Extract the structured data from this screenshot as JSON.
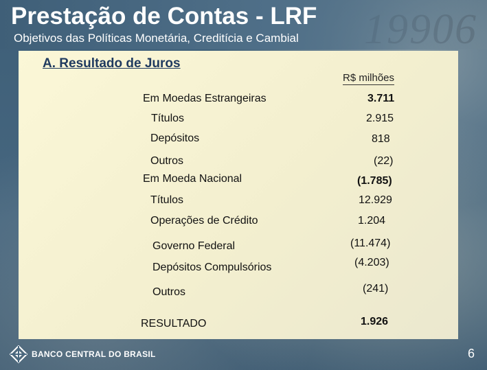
{
  "header": {
    "title": "Prestação de Contas - LRF",
    "subtitle": "Objetivos das Políticas Monetária, Creditícia e Cambial"
  },
  "section": {
    "heading": "A. Resultado de Juros",
    "unit": "R$ milhões"
  },
  "rows": [
    {
      "label": "Em Moedas Estrangeiras",
      "value": "3.711"
    },
    {
      "label": "Títulos",
      "value": "2.915"
    },
    {
      "label": "Depósitos",
      "value": "818"
    },
    {
      "label": "Outros",
      "value": "(22)"
    },
    {
      "label": "Em Moeda Nacional",
      "value": "(1.785)"
    },
    {
      "label": "Títulos",
      "value": "12.929"
    },
    {
      "label": "Operações de Crédito",
      "value": "1.204"
    },
    {
      "label": "Governo Federal",
      "value": "(11.474)"
    },
    {
      "label": "Depósitos Compulsórios",
      "value": "(4.203)"
    },
    {
      "label": "Outros",
      "value": "(241)"
    },
    {
      "label": "RESULTADO",
      "value": "1.926"
    }
  ],
  "footer": {
    "logo_text": "BANCO CENTRAL DO BRASIL",
    "page_number": "6"
  },
  "background": {
    "watermark_text": "19906"
  },
  "colors": {
    "background": "#46667f",
    "panel": "#f7f3d3",
    "heading": "#1f3a5f"
  }
}
